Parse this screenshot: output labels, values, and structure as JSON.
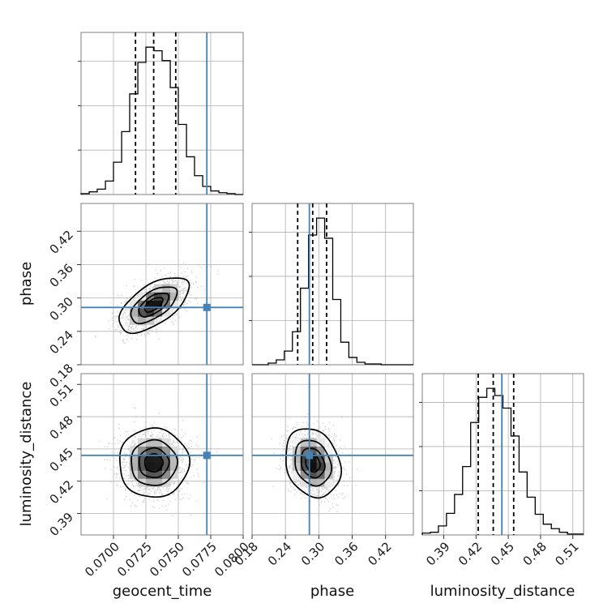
{
  "chart_data": {
    "type": "corner",
    "parameters": [
      "geocent_time",
      "phase",
      "luminosity_distance"
    ],
    "truths": [
      0.0772,
      0.283,
      0.444
    ],
    "truth_color": "#4682b4",
    "quantiles": [
      [
        0.0717,
        0.0731,
        0.0748
      ],
      [
        0.262,
        0.289,
        0.314
      ],
      [
        0.422,
        0.436,
        0.455
      ]
    ],
    "ranges": [
      [
        0.0675,
        0.08
      ],
      [
        0.18,
        0.47
      ],
      [
        0.37,
        0.52
      ]
    ],
    "ticks": [
      {
        "values": [
          0.07,
          0.0725,
          0.075,
          0.0775,
          0.08
        ],
        "labels": [
          "0.0700",
          "0.0725",
          "0.0750",
          "0.0775",
          "0.0800"
        ]
      },
      {
        "values": [
          0.18,
          0.24,
          0.3,
          0.36,
          0.42
        ],
        "labels": [
          "0.18",
          "0.24",
          "0.30",
          "0.36",
          "0.42"
        ]
      },
      {
        "values": [
          0.39,
          0.42,
          0.45,
          0.48,
          0.51
        ],
        "labels": [
          "0.39",
          "0.42",
          "0.45",
          "0.48",
          "0.51"
        ]
      }
    ],
    "axis_labels": {
      "x": [
        "geocent_time",
        "phase",
        "luminosity_distance"
      ],
      "y": [
        "phase",
        "luminosity_distance"
      ]
    },
    "grid": true,
    "histograms": [
      {
        "edges": [
          0.0675,
          0.06813,
          0.06875,
          0.06938,
          0.07,
          0.07063,
          0.07125,
          0.07188,
          0.0725,
          0.07313,
          0.07375,
          0.07438,
          0.075,
          0.07563,
          0.07625,
          0.07688,
          0.0775,
          0.07813,
          0.07875,
          0.07938,
          0.08
        ],
        "counts": [
          1,
          3,
          6,
          15,
          36,
          70,
          112,
          147,
          164,
          160,
          149,
          119,
          78,
          42,
          21,
          9,
          4,
          2,
          1,
          0
        ]
      },
      {
        "edges": [
          0.18,
          0.1945,
          0.209,
          0.2235,
          0.238,
          0.2525,
          0.267,
          0.2815,
          0.296,
          0.3105,
          0.325,
          0.3395,
          0.354,
          0.3685,
          0.383,
          0.3975,
          0.412,
          0.4265,
          0.441,
          0.4555,
          0.47
        ],
        "counts": [
          0,
          0,
          2,
          6,
          17,
          41,
          95,
          161,
          182,
          157,
          81,
          28,
          9,
          3,
          1,
          1,
          0,
          0,
          0,
          0
        ]
      },
      {
        "edges": [
          0.37,
          0.3775,
          0.385,
          0.3925,
          0.4,
          0.4075,
          0.415,
          0.4225,
          0.43,
          0.4375,
          0.445,
          0.4525,
          0.46,
          0.4675,
          0.475,
          0.4825,
          0.49,
          0.4975,
          0.505,
          0.5125,
          0.52
        ],
        "counts": [
          2,
          3,
          10,
          24,
          45,
          76,
          125,
          153,
          163,
          155,
          141,
          110,
          70,
          42,
          23,
          12,
          7,
          3,
          1,
          1
        ]
      }
    ],
    "joint_2d": [
      {
        "x_param": "geocent_time",
        "y_param": "phase",
        "mean": [
          0.0731,
          0.288
        ],
        "std": [
          0.0013,
          0.024
        ],
        "rho": 0.6
      },
      {
        "x_param": "geocent_time",
        "y_param": "luminosity_distance",
        "mean": [
          0.0731,
          0.437
        ],
        "std": [
          0.0013,
          0.0155
        ],
        "rho": 0.0
      },
      {
        "x_param": "phase",
        "y_param": "luminosity_distance",
        "mean": [
          0.289,
          0.437
        ],
        "std": [
          0.024,
          0.0155
        ],
        "rho": -0.2
      }
    ]
  }
}
